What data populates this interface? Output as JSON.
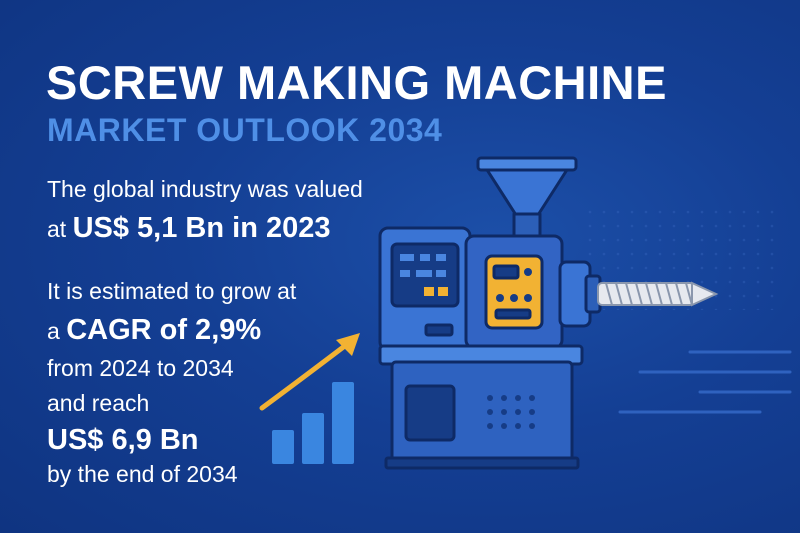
{
  "header": {
    "title": "SCREW MAKING MACHINE",
    "subtitle": "MARKET OUTLOOK 2034"
  },
  "facts": {
    "valued_line1": "The global industry was valued",
    "valued_prefix": "at ",
    "valued_amount": "US$ 5,1 Bn in 2023",
    "growth_line1": "It is estimated to grow at",
    "growth_prefix": "a ",
    "growth_cagr": "CAGR of 2,9%",
    "growth_period": "from 2024 to 2034",
    "reach_label": "and reach",
    "reach_amount": "US$ 6,9 Bn",
    "reach_period": "by the end of 2034"
  },
  "illustration": {
    "growth_bar_levels": [
      0.42,
      0.62,
      1.0
    ],
    "colors": {
      "background": "#143f94",
      "machine_body": "#3a74d4",
      "machine_dark": "#0e2a66",
      "panel_accent": "#f2b233",
      "arrow": "#f2b233",
      "bars": "#3a86e0",
      "screw": "#e6e9ef"
    },
    "icons": [
      "screw-making-machine-icon",
      "growth-bars-icon",
      "trend-arrow-icon",
      "screw-icon"
    ]
  }
}
